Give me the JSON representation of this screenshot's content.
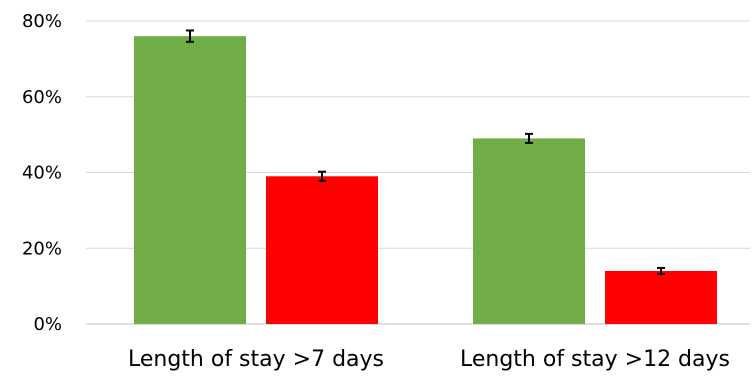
{
  "chart_data": {
    "type": "bar",
    "title": "",
    "xlabel": "",
    "ylabel": "",
    "categories": [
      "Length of stay >7 days",
      "Length of stay >12 days"
    ],
    "ylim": [
      0,
      80
    ],
    "yticks": [
      0,
      20,
      40,
      60,
      80
    ],
    "ytick_labels": [
      "0%",
      "20%",
      "40%",
      "60%",
      "80%"
    ],
    "grid": true,
    "legend": "none",
    "series": [
      {
        "color": "#70ad47",
        "values": [
          76,
          49
        ],
        "errors": [
          1.5,
          1.2
        ]
      },
      {
        "color": "#ff0000",
        "values": [
          39,
          14
        ],
        "errors": [
          1.2,
          0.8
        ]
      }
    ]
  }
}
